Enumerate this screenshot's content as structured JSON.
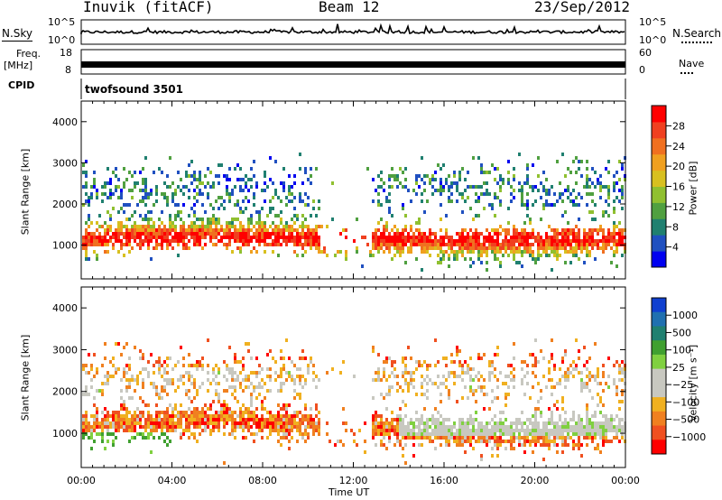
{
  "header": {
    "station": "Inuvik (fitACF)",
    "beam": "Beam 12",
    "date": "23/Sep/2012"
  },
  "strip_panels": {
    "nsky_label": "N.Sky",
    "nsearch_label": "N.Search",
    "nsky_ticks": [
      "10^5",
      "10^0"
    ],
    "nsearch_ticks": [
      "10^5",
      "10^0"
    ],
    "freq_label": "Freq.",
    "freq_unit": "[MHz]",
    "freq_ticks": [
      "18",
      "8"
    ],
    "nave_label": "Nave",
    "nave_ticks": [
      "60",
      "0"
    ],
    "cpid_label": "CPID",
    "cpid_value": "twofsound 3501"
  },
  "chart_data": [
    {
      "type": "heatmap",
      "name": "power-panel",
      "ylabel": "Slant Range [km]",
      "xlabel": "",
      "y_ticks": [
        1000,
        2000,
        3000,
        4000
      ],
      "ylim": [
        180,
        4500
      ],
      "colorbar": {
        "label": "Power [dB]",
        "ticks": [
          "4",
          "8",
          "12",
          "16",
          "20",
          "24",
          "28"
        ],
        "colors": [
          "#0000f0",
          "#2050c0",
          "#208070",
          "#50a040",
          "#90c030",
          "#d8c020",
          "#f0a020",
          "#f07020",
          "#f04020",
          "#ff0000"
        ]
      }
    },
    {
      "type": "heatmap",
      "name": "velocity-panel",
      "ylabel": "Slant Range [km]",
      "xlabel": "Time UT",
      "x_ticks": [
        "00:00",
        "04:00",
        "08:00",
        "12:00",
        "16:00",
        "20:00",
        "00:00"
      ],
      "y_ticks": [
        1000,
        2000,
        3000,
        4000
      ],
      "ylim": [
        180,
        4500
      ],
      "colorbar": {
        "label": "Velocity [m s⁻¹]",
        "ticks": [
          "1000",
          "500",
          "100",
          "25",
          "−25",
          "−100",
          "−500",
          "−1000"
        ],
        "colors": [
          "#1040d0",
          "#2070b0",
          "#208070",
          "#40a030",
          "#80d040",
          "#c8c8c0",
          "#c8c8c0",
          "#f0b020",
          "#f08020",
          "#f05020",
          "#ff0000"
        ]
      }
    }
  ],
  "colors": {
    "frame": "#000000",
    "background": "#ffffff"
  }
}
